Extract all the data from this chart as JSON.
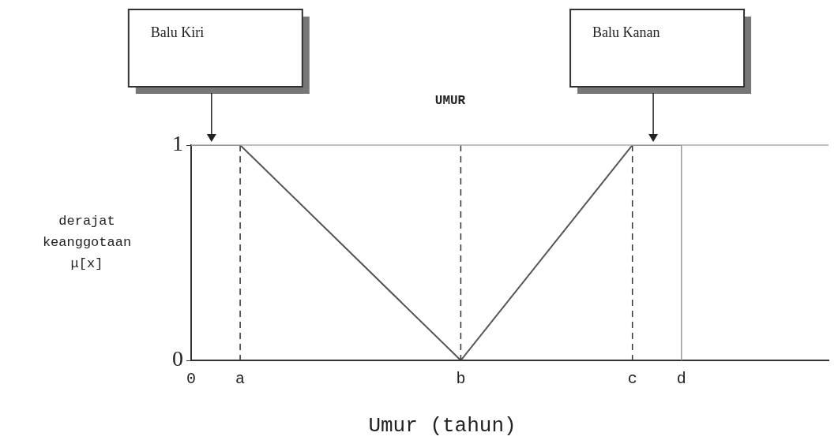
{
  "chart_data": {
    "type": "line",
    "title": "UMUR",
    "xlabel": "Umur (tahun)",
    "ylabel": "derajat keanggotaan μ[x]",
    "categories": [
      "0",
      null,
      "a",
      null,
      null,
      null,
      null,
      null,
      null,
      null,
      null,
      "b",
      null,
      null,
      null,
      null,
      null,
      null,
      "c",
      null,
      "d",
      null,
      null,
      null,
      null,
      null,
      null
    ],
    "series": [
      {
        "color": "#555555",
        "values": [
          1,
          null,
          1,
          null,
          null,
          null,
          null,
          null,
          null,
          null,
          null,
          0,
          null,
          null,
          null,
          null,
          null,
          null,
          1,
          null,
          1,
          null,
          null,
          null,
          null,
          null,
          null
        ]
      }
    ],
    "ylim": [
      0,
      1
    ],
    "yticks": [
      0,
      1
    ],
    "ref_lines": [
      {
        "axis": "x",
        "value": "a",
        "line_style": "dashed",
        "color": "#333333"
      },
      {
        "axis": "x",
        "value": "b",
        "line_style": "dashed",
        "color": "#333333"
      },
      {
        "axis": "x",
        "value": "c",
        "line_style": "dashed",
        "color": "#333333"
      },
      {
        "axis": "x",
        "value": "d",
        "line_style": "solid",
        "color": "#999999"
      },
      {
        "axis": "y",
        "value": 1,
        "line_style": "solid",
        "color": "#aaaaaa"
      }
    ],
    "annotations": [
      "Balu Kiri",
      "Balu Kanan"
    ],
    "grid": false,
    "legend": false,
    "marker": "none",
    "line_style": "solid"
  }
}
